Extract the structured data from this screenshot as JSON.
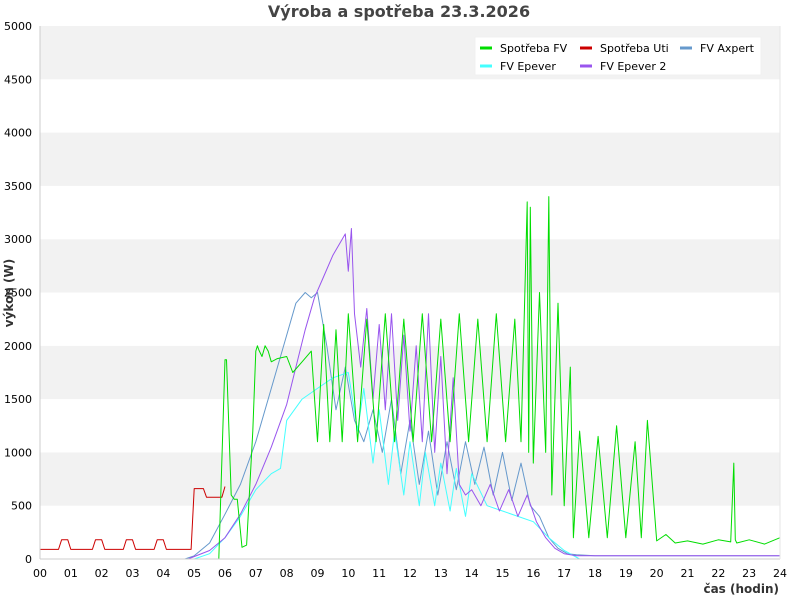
{
  "chart_data": {
    "type": "line",
    "title": "Výroba a spotřeba 23.3.2026",
    "xlabel": "čas (hodin)",
    "ylabel": "výkon (W)",
    "xlim": [
      0,
      24
    ],
    "ylim": [
      0,
      5000
    ],
    "x_ticks": [
      "00",
      "01",
      "02",
      "03",
      "04",
      "05",
      "06",
      "07",
      "08",
      "09",
      "10",
      "11",
      "12",
      "13",
      "14",
      "15",
      "16",
      "17",
      "18",
      "19",
      "20",
      "21",
      "22",
      "23",
      "24"
    ],
    "y_ticks": [
      "0",
      "500",
      "1000",
      "1500",
      "2000",
      "2500",
      "3000",
      "3500",
      "4000",
      "4500",
      "5000"
    ],
    "grid": "horizontal bands",
    "legend_position": "top-right",
    "series": [
      {
        "name": "Spotřeba FV",
        "color": "#00dd00",
        "x": [
          5.8,
          6.0,
          6.05,
          6.2,
          6.3,
          6.4,
          6.55,
          6.7,
          6.9,
          7.0,
          7.05,
          7.1,
          7.2,
          7.3,
          7.4,
          7.5,
          7.7,
          8.0,
          8.2,
          8.5,
          8.8,
          9.0,
          9.2,
          9.4,
          9.6,
          9.8,
          10.0,
          10.3,
          10.6,
          10.9,
          11.2,
          11.5,
          11.8,
          12.1,
          12.4,
          12.7,
          13.0,
          13.3,
          13.6,
          13.9,
          14.2,
          14.5,
          14.8,
          15.1,
          15.4,
          15.6,
          15.8,
          15.85,
          15.9,
          16.0,
          16.2,
          16.4,
          16.5,
          16.6,
          16.8,
          17.0,
          17.2,
          17.3,
          17.5,
          17.8,
          18.1,
          18.4,
          18.7,
          19.0,
          19.3,
          19.5,
          19.7,
          20.0,
          20.3,
          20.6,
          21.0,
          21.5,
          22.0,
          22.4,
          22.5,
          22.55,
          22.6,
          23.0,
          23.5,
          24.0
        ],
        "y": [
          0,
          1870,
          1870,
          600,
          560,
          560,
          110,
          130,
          1200,
          1950,
          2000,
          1960,
          1900,
          2000,
          1950,
          1850,
          1880,
          1900,
          1750,
          1850,
          1950,
          1100,
          2200,
          1100,
          2150,
          1100,
          2300,
          1100,
          2250,
          1100,
          2300,
          1100,
          2250,
          1100,
          2300,
          1100,
          2250,
          1100,
          2300,
          1100,
          2250,
          1100,
          2300,
          1100,
          2250,
          1100,
          3350,
          1000,
          3300,
          900,
          2500,
          1000,
          3400,
          600,
          2400,
          500,
          1800,
          200,
          1200,
          200,
          1150,
          200,
          1250,
          200,
          1100,
          200,
          1300,
          170,
          230,
          150,
          170,
          140,
          180,
          160,
          900,
          180,
          150,
          180,
          140,
          200
        ]
      },
      {
        "name": "Spotřeba Uti",
        "color": "#cc0000",
        "x": [
          0.0,
          0.6,
          0.7,
          0.9,
          1.0,
          1.7,
          1.8,
          2.0,
          2.1,
          2.7,
          2.8,
          3.0,
          3.1,
          3.7,
          3.8,
          4.0,
          4.1,
          4.9,
          5.0,
          5.3,
          5.4,
          5.9,
          6.0
        ],
        "y": [
          90,
          90,
          180,
          180,
          90,
          90,
          180,
          180,
          90,
          90,
          180,
          180,
          90,
          90,
          180,
          180,
          90,
          90,
          660,
          660,
          580,
          580,
          680
        ]
      },
      {
        "name": "FV Axpert",
        "color": "#6699cc",
        "x": [
          4.7,
          5.0,
          5.5,
          6.0,
          6.5,
          7.0,
          7.5,
          8.0,
          8.3,
          8.6,
          8.8,
          9.0,
          9.3,
          9.6,
          9.9,
          10.2,
          10.5,
          10.8,
          11.1,
          11.4,
          11.7,
          12.0,
          12.3,
          12.6,
          12.9,
          13.2,
          13.5,
          13.8,
          14.1,
          14.4,
          14.7,
          15.0,
          15.3,
          15.6,
          15.9,
          16.2,
          16.5,
          16.8,
          17.1,
          17.4,
          18.0,
          19.0,
          20.0,
          21.0,
          22.0,
          23.0,
          24.0
        ],
        "y": [
          0,
          30,
          150,
          420,
          700,
          1100,
          1600,
          2100,
          2400,
          2500,
          2450,
          2500,
          2000,
          1400,
          1800,
          1300,
          1100,
          1400,
          1000,
          1500,
          800,
          1300,
          700,
          1200,
          600,
          1100,
          650,
          1100,
          700,
          1050,
          600,
          1000,
          550,
          900,
          500,
          400,
          200,
          100,
          50,
          40,
          30,
          30,
          30,
          30,
          30,
          30,
          30
        ]
      },
      {
        "name": "FV Epever",
        "color": "#44ffff",
        "x": [
          5.0,
          5.5,
          6.0,
          6.5,
          7.0,
          7.5,
          7.8,
          8.0,
          8.5,
          9.0,
          9.5,
          10.0,
          10.3,
          10.5,
          10.8,
          11.0,
          11.3,
          11.5,
          11.8,
          12.0,
          12.3,
          12.5,
          12.8,
          13.0,
          13.3,
          13.5,
          13.8,
          14.0,
          14.5,
          15.0,
          15.5,
          16.0,
          16.5,
          17.0,
          17.5
        ],
        "y": [
          0,
          50,
          200,
          400,
          650,
          800,
          850,
          1300,
          1500,
          1600,
          1700,
          1750,
          1200,
          1600,
          900,
          1400,
          700,
          1200,
          600,
          1100,
          500,
          1000,
          500,
          900,
          450,
          850,
          400,
          800,
          500,
          450,
          400,
          350,
          200,
          80,
          0
        ]
      },
      {
        "name": "FV Epever 2",
        "color": "#9955ee",
        "x": [
          4.8,
          5.5,
          6.0,
          6.5,
          7.0,
          7.5,
          8.0,
          8.3,
          8.6,
          8.9,
          9.2,
          9.5,
          9.8,
          9.9,
          10.0,
          10.1,
          10.2,
          10.4,
          10.6,
          10.8,
          11.0,
          11.2,
          11.4,
          11.6,
          11.8,
          12.0,
          12.2,
          12.4,
          12.6,
          12.8,
          13.0,
          13.2,
          13.4,
          13.6,
          13.8,
          14.0,
          14.3,
          14.6,
          14.9,
          15.2,
          15.5,
          15.8,
          16.1,
          16.4,
          16.7,
          17.0,
          17.4,
          18.0,
          19.0,
          20.0,
          21.0,
          22.0,
          23.0,
          24.0
        ],
        "y": [
          0,
          80,
          200,
          420,
          700,
          1050,
          1450,
          1800,
          2150,
          2450,
          2650,
          2850,
          3000,
          3050,
          2700,
          3100,
          2300,
          1800,
          2350,
          1500,
          2200,
          1400,
          2300,
          1300,
          2100,
          1200,
          2000,
          1100,
          2300,
          1000,
          1900,
          800,
          1700,
          700,
          600,
          650,
          500,
          700,
          450,
          650,
          400,
          600,
          350,
          200,
          100,
          50,
          30,
          30,
          30,
          30,
          30,
          30,
          30,
          30
        ]
      }
    ]
  }
}
